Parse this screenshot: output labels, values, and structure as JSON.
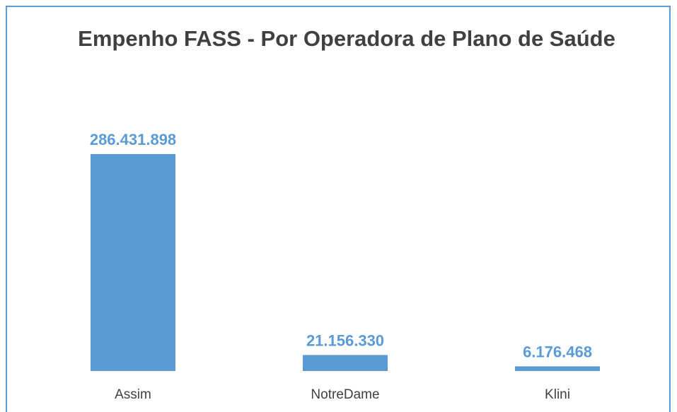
{
  "chart_data": {
    "type": "bar",
    "title": "Empenho FASS - Por Operadora de Plano de Saúde",
    "categories": [
      "Assim",
      "NotreDame",
      "Klini"
    ],
    "values": [
      286431898,
      21156330,
      6176468
    ],
    "value_labels": [
      "286.431.898",
      "21.156.330",
      "6.176.468"
    ],
    "color": "#5b9bd5"
  }
}
